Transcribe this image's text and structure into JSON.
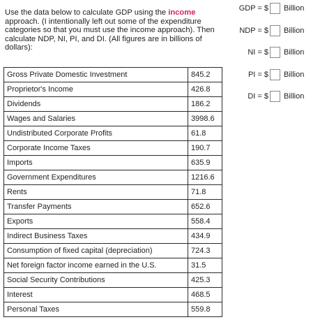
{
  "question": {
    "pre": "Use the data below to calculate GDP using the ",
    "highlight": "income",
    "post": " approach.  (I intentionally left out some of the expenditure categories so that you must use the income approach).  Then calculate NDP, NI, PI, and DI.  (All figures are in billions of dollars):",
    "highlight_color": "#d6245a"
  },
  "table": [
    {
      "label": "Gross Private Domestic Investment",
      "value": "845.2"
    },
    {
      "label": "Proprietor's Income",
      "value": "426.8"
    },
    {
      "label": "Dividends",
      "value": "186.2"
    },
    {
      "label": "Wages and Salaries",
      "value": "3998.6"
    },
    {
      "label": "Undistributed Corporate Profits",
      "value": "61.8"
    },
    {
      "label": "Corporate Income Taxes",
      "value": "190.7"
    },
    {
      "label": "Imports",
      "value": "635.9"
    },
    {
      "label": "Government Expenditures",
      "value": "1216.6"
    },
    {
      "label": "Rents",
      "value": "71.8"
    },
    {
      "label": "Transfer Payments",
      "value": "652.6"
    },
    {
      "label": "Exports",
      "value": "558.4"
    },
    {
      "label": "Indirect Business Taxes",
      "value": "434.9"
    },
    {
      "label": "Consumption of fixed capital (depreciation)",
      "value": "724.3"
    },
    {
      "label": "Net foreign factor income earned in the U.S.",
      "value": "31.5"
    },
    {
      "label": "Social Security Contributions",
      "value": "425.3"
    },
    {
      "label": "Interest",
      "value": "468.5"
    },
    {
      "label": "Personal Taxes",
      "value": "559.8"
    }
  ],
  "answers": [
    {
      "label": "GDP = $",
      "unit": "Billion",
      "value": ""
    },
    {
      "label": "NDP = $",
      "unit": "Billion",
      "value": ""
    },
    {
      "label": "NI = $",
      "unit": "Billion",
      "value": ""
    },
    {
      "label": "PI = $",
      "unit": "Billion",
      "value": ""
    },
    {
      "label": "DI = $",
      "unit": "Billion",
      "value": ""
    }
  ]
}
